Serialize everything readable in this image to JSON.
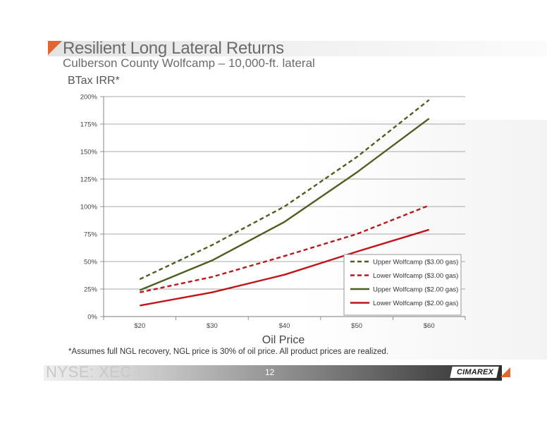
{
  "slide": {
    "title": "Resilient Long Lateral Returns",
    "subtitle": "Culberson County Wolfcamp – 10,000-ft. lateral",
    "footnote": "*Assumes full NGL recovery, NGL price is 30% of oil price. All product prices are realized.",
    "ticker": "NYSE: XEC",
    "page_number": "12",
    "logo_text": "CIMAREX"
  },
  "colors": {
    "accent_orange": "#e2672f",
    "upper_color": "#4d5e1f",
    "lower_color": "#c0141b",
    "grid": "#8c8c8c"
  },
  "chart_data": {
    "type": "line",
    "ylabel": "BTax IRR*",
    "xlabel": "Oil Price",
    "categories": [
      "$20",
      "$30",
      "$40",
      "$50",
      "$60"
    ],
    "ylim": [
      0,
      200
    ],
    "yticks": [
      0,
      25,
      50,
      75,
      100,
      125,
      150,
      175,
      200
    ],
    "ytick_labels": [
      "0%",
      "25%",
      "50%",
      "75%",
      "100%",
      "125%",
      "150%",
      "175%",
      "200%"
    ],
    "grid": true,
    "legend_position": "lower-right",
    "series": [
      {
        "name": "Upper Wolfcamp ($3.00 gas)",
        "values": [
          34,
          65,
          100,
          145,
          197
        ],
        "color": "#4d5e1f",
        "dashed": true
      },
      {
        "name": "Lower Wolfcamp ($3.00 gas)",
        "values": [
          22,
          36,
          55,
          75,
          101
        ],
        "color": "#c0141b",
        "dashed": true
      },
      {
        "name": "Upper Wolfcamp ($2.00 gas)",
        "values": [
          24,
          51,
          86,
          131,
          180
        ],
        "color": "#4d5e1f",
        "dashed": false
      },
      {
        "name": "Lower Wolfcamp ($2.00 gas)",
        "values": [
          10,
          22,
          38,
          59,
          79
        ],
        "color": "#c0141b",
        "dashed": false
      }
    ]
  }
}
